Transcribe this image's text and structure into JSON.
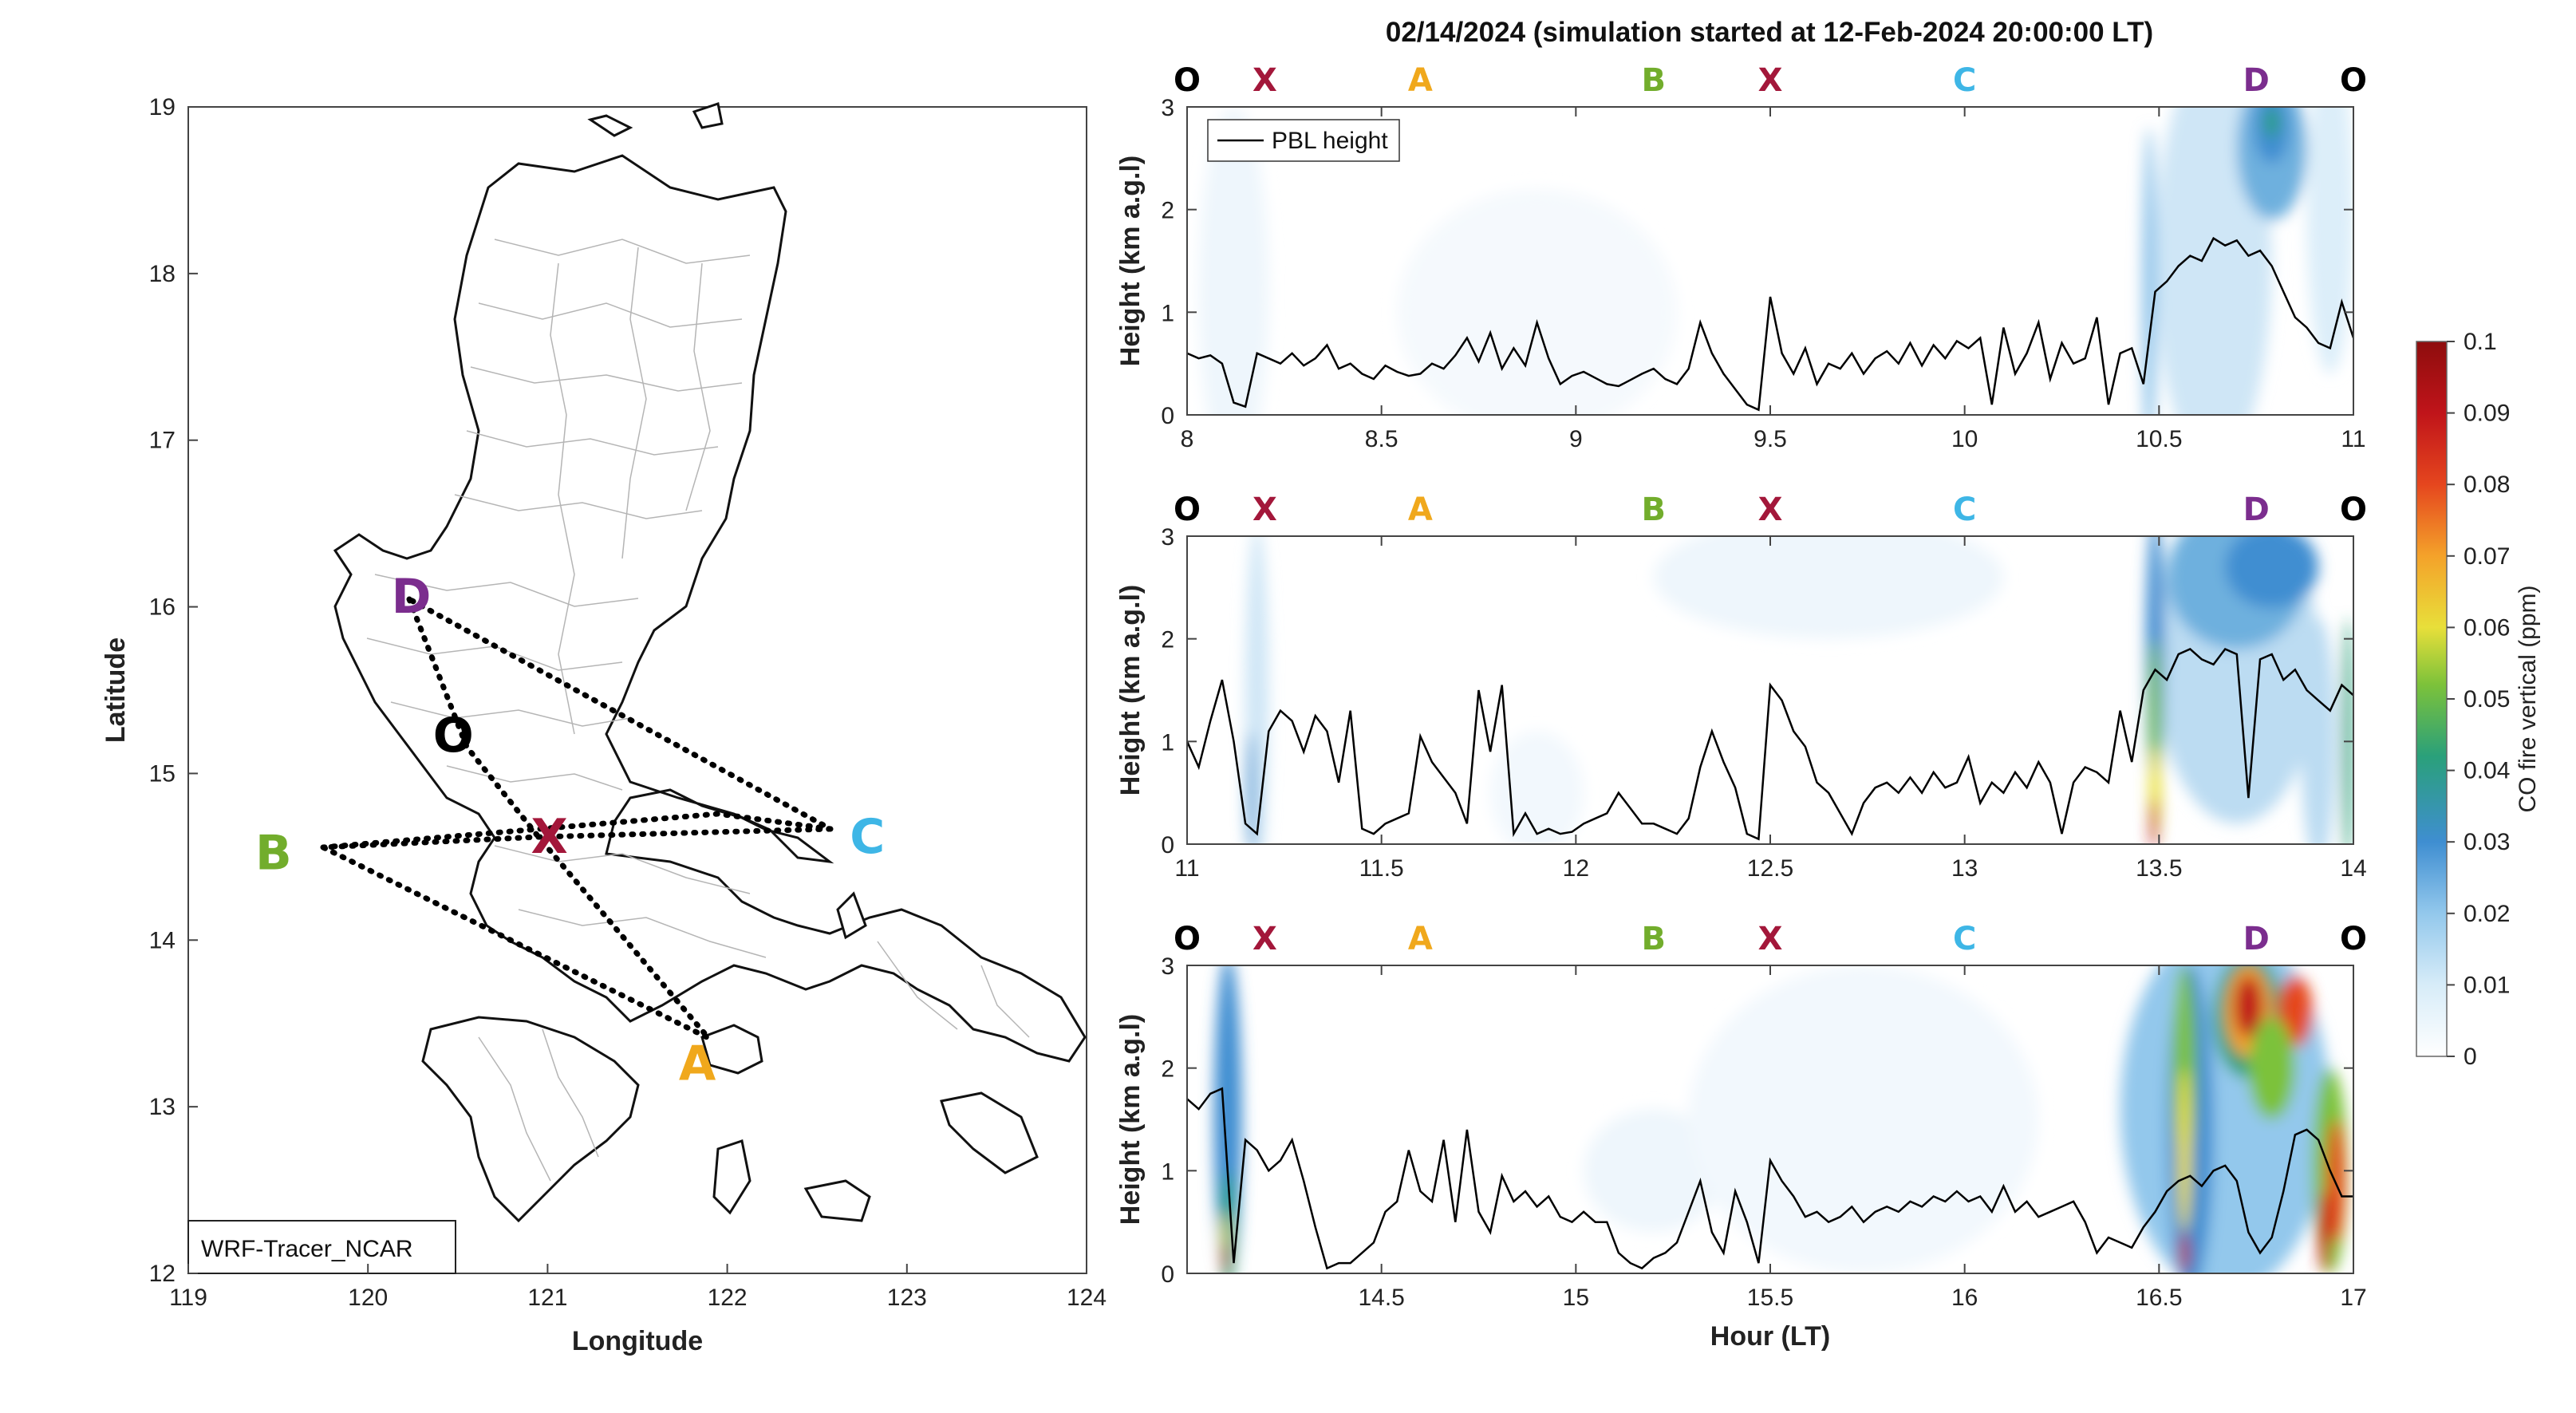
{
  "chart_data": [
    {
      "type": "map",
      "xlabel": "Longitude",
      "ylabel": "Latitude",
      "xlim": [
        119,
        124
      ],
      "ylim": [
        12,
        19
      ],
      "xticks": [
        "119",
        "120",
        "121",
        "122",
        "123",
        "124"
      ],
      "yticks": [
        "12",
        "13",
        "14",
        "15",
        "16",
        "17",
        "18",
        "19"
      ],
      "model_label": "WRF-Tracer_NCAR",
      "points": [
        {
          "name": "D",
          "lon": 120.25,
          "lat": 16.05,
          "color": "#7b2d8e"
        },
        {
          "name": "O",
          "lon": 120.52,
          "lat": 15.17,
          "color": "#000000"
        },
        {
          "name": "X",
          "lon": 121.01,
          "lat": 14.58,
          "color": "#a3173a"
        },
        {
          "name": "B",
          "lon": 119.75,
          "lat": 14.52,
          "color": "#72ad2c"
        },
        {
          "name": "C",
          "lon": 122.58,
          "lat": 14.62,
          "color": "#3eb6e6"
        },
        {
          "name": "A",
          "lon": 121.7,
          "lat": 13.4,
          "color": "#f0a81c"
        }
      ],
      "route": [
        "O",
        "X",
        "A",
        "B",
        "X",
        "C",
        "D",
        "O"
      ]
    },
    {
      "type": "heatmap",
      "ylabel": "Height (km a.g.l)",
      "xlim": [
        8,
        11
      ],
      "ylim": [
        0,
        3
      ],
      "xticks": [
        "8",
        "8.5",
        "9",
        "9.5",
        "10",
        "10.5",
        "11"
      ],
      "yticks": [
        "0",
        "1",
        "2",
        "3"
      ],
      "legend": "PBL height",
      "route_labels": [
        {
          "label": "O",
          "x": 8.0
        },
        {
          "label": "X",
          "x": 8.2
        },
        {
          "label": "A",
          "x": 8.6
        },
        {
          "label": "B",
          "x": 9.2
        },
        {
          "label": "X",
          "x": 9.5
        },
        {
          "label": "C",
          "x": 10.0
        },
        {
          "label": "D",
          "x": 10.75
        },
        {
          "label": "O",
          "x": 11.0
        }
      ],
      "pbl_height": {
        "x": [
          8.0,
          8.03,
          8.06,
          8.09,
          8.12,
          8.15,
          8.18,
          8.21,
          8.24,
          8.27,
          8.3,
          8.33,
          8.36,
          8.39,
          8.42,
          8.45,
          8.48,
          8.51,
          8.54,
          8.57,
          8.6,
          8.63,
          8.66,
          8.69,
          8.72,
          8.75,
          8.78,
          8.81,
          8.84,
          8.87,
          8.9,
          8.93,
          8.96,
          8.99,
          9.02,
          9.05,
          9.08,
          9.11,
          9.14,
          9.17,
          9.2,
          9.23,
          9.26,
          9.29,
          9.32,
          9.35,
          9.38,
          9.41,
          9.44,
          9.47,
          9.5,
          9.53,
          9.56,
          9.59,
          9.62,
          9.65,
          9.68,
          9.71,
          9.74,
          9.77,
          9.8,
          9.83,
          9.86,
          9.89,
          9.92,
          9.95,
          9.98,
          10.01,
          10.04,
          10.07,
          10.1,
          10.13,
          10.16,
          10.19,
          10.22,
          10.25,
          10.28,
          10.31,
          10.34,
          10.37,
          10.4,
          10.43,
          10.46,
          10.49,
          10.52,
          10.55,
          10.58,
          10.61,
          10.64,
          10.67,
          10.7,
          10.73,
          10.76,
          10.79,
          10.82,
          10.85,
          10.88,
          10.91,
          10.94,
          10.97,
          11.0
        ],
        "y": [
          0.6,
          0.55,
          0.58,
          0.5,
          0.12,
          0.08,
          0.6,
          0.55,
          0.5,
          0.6,
          0.48,
          0.55,
          0.68,
          0.45,
          0.5,
          0.4,
          0.35,
          0.48,
          0.42,
          0.38,
          0.4,
          0.5,
          0.45,
          0.58,
          0.75,
          0.52,
          0.8,
          0.45,
          0.65,
          0.48,
          0.9,
          0.55,
          0.3,
          0.38,
          0.42,
          0.36,
          0.3,
          0.28,
          0.34,
          0.4,
          0.45,
          0.35,
          0.3,
          0.45,
          0.9,
          0.6,
          0.4,
          0.25,
          0.1,
          0.05,
          1.15,
          0.6,
          0.4,
          0.65,
          0.3,
          0.5,
          0.45,
          0.6,
          0.4,
          0.55,
          0.62,
          0.5,
          0.7,
          0.48,
          0.68,
          0.55,
          0.72,
          0.65,
          0.75,
          0.1,
          0.85,
          0.4,
          0.6,
          0.9,
          0.35,
          0.7,
          0.5,
          0.55,
          0.95,
          0.1,
          0.6,
          0.65,
          0.3,
          1.2,
          1.3,
          1.45,
          1.55,
          1.5,
          1.72,
          1.65,
          1.7,
          1.55,
          1.6,
          1.45,
          1.2,
          0.95,
          0.85,
          0.7,
          0.65,
          1.1,
          0.75
        ]
      }
    },
    {
      "type": "heatmap",
      "ylabel": "Height (km a.g.l)",
      "xlim": [
        11,
        14
      ],
      "ylim": [
        0,
        3
      ],
      "xticks": [
        "11",
        "11.5",
        "12",
        "12.5",
        "13",
        "13.5",
        "14"
      ],
      "yticks": [
        "0",
        "1",
        "2",
        "3"
      ],
      "route_labels": [
        {
          "label": "O",
          "x": 11.0
        },
        {
          "label": "X",
          "x": 11.2
        },
        {
          "label": "A",
          "x": 11.6
        },
        {
          "label": "B",
          "x": 12.2
        },
        {
          "label": "X",
          "x": 12.5
        },
        {
          "label": "C",
          "x": 13.0
        },
        {
          "label": "D",
          "x": 13.75
        },
        {
          "label": "O",
          "x": 14.0
        }
      ],
      "pbl_height": {
        "x": [
          11.0,
          11.03,
          11.06,
          11.09,
          11.12,
          11.15,
          11.18,
          11.21,
          11.24,
          11.27,
          11.3,
          11.33,
          11.36,
          11.39,
          11.42,
          11.45,
          11.48,
          11.51,
          11.54,
          11.57,
          11.6,
          11.63,
          11.66,
          11.69,
          11.72,
          11.75,
          11.78,
          11.81,
          11.84,
          11.87,
          11.9,
          11.93,
          11.96,
          11.99,
          12.02,
          12.05,
          12.08,
          12.11,
          12.14,
          12.17,
          12.2,
          12.23,
          12.26,
          12.29,
          12.32,
          12.35,
          12.38,
          12.41,
          12.44,
          12.47,
          12.5,
          12.53,
          12.56,
          12.59,
          12.62,
          12.65,
          12.68,
          12.71,
          12.74,
          12.77,
          12.8,
          12.83,
          12.86,
          12.89,
          12.92,
          12.95,
          12.98,
          13.01,
          13.04,
          13.07,
          13.1,
          13.13,
          13.16,
          13.19,
          13.22,
          13.25,
          13.28,
          13.31,
          13.34,
          13.37,
          13.4,
          13.43,
          13.46,
          13.49,
          13.52,
          13.55,
          13.58,
          13.61,
          13.64,
          13.67,
          13.7,
          13.73,
          13.76,
          13.79,
          13.82,
          13.85,
          13.88,
          13.91,
          13.94,
          13.97,
          14.0
        ],
        "y": [
          1.0,
          0.75,
          1.2,
          1.6,
          1.0,
          0.2,
          0.1,
          1.1,
          1.3,
          1.2,
          0.9,
          1.25,
          1.1,
          0.6,
          1.3,
          0.15,
          0.1,
          0.2,
          0.25,
          0.3,
          1.05,
          0.8,
          0.65,
          0.5,
          0.2,
          1.5,
          0.9,
          1.55,
          0.1,
          0.3,
          0.1,
          0.15,
          0.1,
          0.12,
          0.2,
          0.25,
          0.3,
          0.5,
          0.35,
          0.2,
          0.2,
          0.15,
          0.1,
          0.25,
          0.75,
          1.1,
          0.8,
          0.55,
          0.1,
          0.05,
          1.55,
          1.4,
          1.1,
          0.95,
          0.6,
          0.5,
          0.3,
          0.1,
          0.4,
          0.55,
          0.6,
          0.5,
          0.65,
          0.5,
          0.7,
          0.55,
          0.6,
          0.85,
          0.4,
          0.6,
          0.5,
          0.7,
          0.55,
          0.8,
          0.6,
          0.1,
          0.6,
          0.75,
          0.7,
          0.6,
          1.3,
          0.8,
          1.5,
          1.7,
          1.6,
          1.85,
          1.9,
          1.8,
          1.75,
          1.9,
          1.85,
          0.45,
          1.8,
          1.85,
          1.6,
          1.7,
          1.5,
          1.4,
          1.3,
          1.55,
          1.45
        ]
      }
    },
    {
      "type": "heatmap",
      "xlabel": "Hour (LT)",
      "ylabel": "Height (km a.g.l)",
      "xlim": [
        14,
        17
      ],
      "ylim": [
        0,
        3
      ],
      "xticks": [
        "14.5",
        "15",
        "15.5",
        "16",
        "16.5",
        "17"
      ],
      "yticks": [
        "0",
        "1",
        "2",
        "3"
      ],
      "route_labels": [
        {
          "label": "O",
          "x": 14.0
        },
        {
          "label": "X",
          "x": 14.2
        },
        {
          "label": "A",
          "x": 14.6
        },
        {
          "label": "B",
          "x": 15.2
        },
        {
          "label": "X",
          "x": 15.5
        },
        {
          "label": "C",
          "x": 16.0
        },
        {
          "label": "D",
          "x": 16.75
        },
        {
          "label": "O",
          "x": 17.0
        }
      ],
      "pbl_height": {
        "x": [
          14.0,
          14.03,
          14.06,
          14.09,
          14.12,
          14.15,
          14.18,
          14.21,
          14.24,
          14.27,
          14.3,
          14.33,
          14.36,
          14.39,
          14.42,
          14.45,
          14.48,
          14.51,
          14.54,
          14.57,
          14.6,
          14.63,
          14.66,
          14.69,
          14.72,
          14.75,
          14.78,
          14.81,
          14.84,
          14.87,
          14.9,
          14.93,
          14.96,
          14.99,
          15.02,
          15.05,
          15.08,
          15.11,
          15.14,
          15.17,
          15.2,
          15.23,
          15.26,
          15.29,
          15.32,
          15.35,
          15.38,
          15.41,
          15.44,
          15.47,
          15.5,
          15.53,
          15.56,
          15.59,
          15.62,
          15.65,
          15.68,
          15.71,
          15.74,
          15.77,
          15.8,
          15.83,
          15.86,
          15.89,
          15.92,
          15.95,
          15.98,
          16.01,
          16.04,
          16.07,
          16.1,
          16.13,
          16.16,
          16.19,
          16.22,
          16.25,
          16.28,
          16.31,
          16.34,
          16.37,
          16.4,
          16.43,
          16.46,
          16.49,
          16.52,
          16.55,
          16.58,
          16.61,
          16.64,
          16.67,
          16.7,
          16.73,
          16.76,
          16.79,
          16.82,
          16.85,
          16.88,
          16.91,
          16.94,
          16.97,
          17.0
        ],
        "y": [
          1.7,
          1.6,
          1.75,
          1.8,
          0.1,
          1.3,
          1.2,
          1.0,
          1.1,
          1.3,
          0.9,
          0.45,
          0.05,
          0.1,
          0.1,
          0.2,
          0.3,
          0.6,
          0.7,
          1.2,
          0.8,
          0.7,
          1.3,
          0.5,
          1.4,
          0.6,
          0.4,
          0.95,
          0.7,
          0.8,
          0.65,
          0.75,
          0.55,
          0.5,
          0.6,
          0.5,
          0.5,
          0.2,
          0.1,
          0.05,
          0.15,
          0.2,
          0.3,
          0.6,
          0.9,
          0.4,
          0.2,
          0.8,
          0.5,
          0.1,
          1.1,
          0.9,
          0.75,
          0.55,
          0.6,
          0.5,
          0.55,
          0.65,
          0.5,
          0.6,
          0.65,
          0.6,
          0.7,
          0.65,
          0.75,
          0.7,
          0.8,
          0.7,
          0.75,
          0.6,
          0.85,
          0.6,
          0.7,
          0.55,
          0.6,
          0.65,
          0.7,
          0.5,
          0.2,
          0.35,
          0.3,
          0.25,
          0.45,
          0.6,
          0.8,
          0.9,
          0.95,
          0.85,
          1.0,
          1.05,
          0.9,
          0.4,
          0.2,
          0.35,
          0.8,
          1.35,
          1.4,
          1.3,
          1.0,
          0.75,
          0.75
        ]
      }
    }
  ],
  "figure": {
    "title": "02/14/2024 (simulation started at 12-Feb-2024 20:00:00 LT)",
    "colorbar": {
      "label": "CO fire vertical (ppm)",
      "ticks": [
        "0",
        "0.01",
        "0.02",
        "0.03",
        "0.04",
        "0.05",
        "0.06",
        "0.07",
        "0.08",
        "0.09",
        "0.1"
      ],
      "colors": [
        "#ffffff",
        "#d7ecf8",
        "#93c8ec",
        "#3f8ed1",
        "#2aa07a",
        "#7cc23a",
        "#e8df3a",
        "#f4a22a",
        "#e5461e",
        "#c0141a",
        "#8e0d0d"
      ]
    },
    "label_colors": {
      "O": "#000000",
      "X": "#a3173a",
      "A": "#f0a81c",
      "B": "#72ad2c",
      "C": "#3eb6e6",
      "D": "#7b2d8e"
    }
  }
}
